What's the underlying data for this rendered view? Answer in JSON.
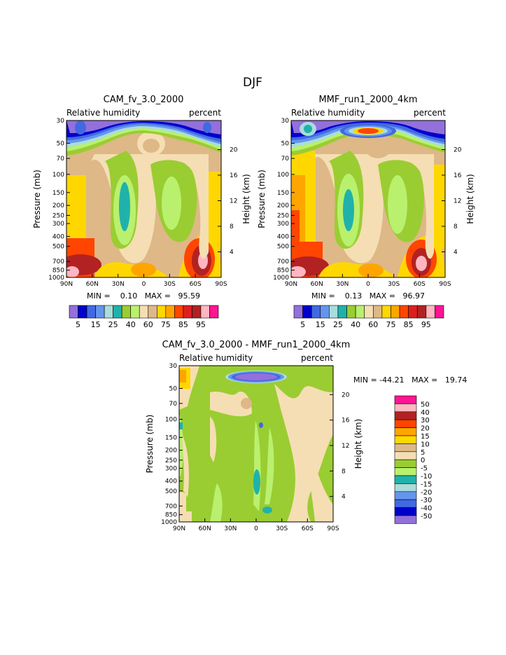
{
  "page_title": "DJF",
  "colors": {
    "rh": [
      "#9370db",
      "#0000cd",
      "#4169e1",
      "#6495ed",
      "#aadcdc",
      "#20b2aa",
      "#9acd32",
      "#b9f06e",
      "#f5deb3",
      "#deb887",
      "#ffd700",
      "#ffa500",
      "#ff4500",
      "#dc2020",
      "#b22222",
      "#ffb6c1",
      "#ff1493"
    ],
    "diff": [
      "#9370db",
      "#0000cd",
      "#4169e1",
      "#6495ed",
      "#aadcdc",
      "#20b2aa",
      "#b9f06e",
      "#9acd32",
      "#f5deb3",
      "#deb887",
      "#ffd700",
      "#ffa500",
      "#ff4500",
      "#b22222",
      "#ffb6c1",
      "#ff1493"
    ]
  },
  "chart_data": [
    {
      "type": "heatmap",
      "title": "CAM_fv_3.0_2000",
      "left_label": "Relative humidity",
      "right_label": "percent",
      "xlabel": "",
      "ylabel": "Pressure (mb)",
      "ylabel_right": "Height (km)",
      "x_ticks": [
        "90N",
        "60N",
        "30N",
        "0",
        "30S",
        "60S",
        "90S"
      ],
      "y_ticks": [
        "30",
        "50",
        "70",
        "100",
        "150",
        "200",
        "250",
        "300",
        "400",
        "500",
        "700",
        "850",
        "1000"
      ],
      "y_ticks_right": [
        "20",
        "16",
        "12",
        "8",
        "4"
      ],
      "min_max_text": "MIN =    0.10   MAX =   95.59",
      "min": 0.1,
      "max": 95.59,
      "colorbar_labels": [
        "5",
        "15",
        "25",
        "40",
        "60",
        "75",
        "85",
        "95"
      ]
    },
    {
      "type": "heatmap",
      "title": "MMF_run1_2000_4km",
      "left_label": "Relative humidity",
      "right_label": "percent",
      "xlabel": "",
      "ylabel": "Pressure (mb)",
      "ylabel_right": "Height (km)",
      "x_ticks": [
        "90N",
        "60N",
        "30N",
        "0",
        "30S",
        "60S",
        "90S"
      ],
      "y_ticks": [
        "30",
        "50",
        "70",
        "100",
        "150",
        "200",
        "250",
        "300",
        "400",
        "500",
        "700",
        "850",
        "1000"
      ],
      "y_ticks_right": [
        "20",
        "16",
        "12",
        "8",
        "4"
      ],
      "min_max_text": "MIN =    0.13   MAX =   96.97",
      "min": 0.13,
      "max": 96.97,
      "colorbar_labels": [
        "5",
        "15",
        "25",
        "40",
        "60",
        "75",
        "85",
        "95"
      ]
    },
    {
      "type": "heatmap",
      "title": "CAM_fv_3.0_2000  -  MMF_run1_2000_4km",
      "left_label": "Relative humidity",
      "right_label": "percent",
      "xlabel": "",
      "ylabel": "Pressure (mb)",
      "ylabel_right": "Height (km)",
      "x_ticks": [
        "90N",
        "60N",
        "30N",
        "0",
        "30S",
        "60S",
        "90S"
      ],
      "y_ticks": [
        "30",
        "50",
        "70",
        "100",
        "150",
        "200",
        "250",
        "300",
        "400",
        "500",
        "700",
        "850",
        "1000"
      ],
      "y_ticks_right": [
        "20",
        "16",
        "12",
        "8",
        "4"
      ],
      "min_max_text": "MIN = -44.21   MAX =   19.74",
      "min": -44.21,
      "max": 19.74,
      "colorbar_labels": [
        "50",
        "40",
        "30",
        "20",
        "15",
        "10",
        "5",
        "0",
        "-5",
        "-10",
        "-15",
        "-20",
        "-30",
        "-40",
        "-50"
      ]
    }
  ]
}
